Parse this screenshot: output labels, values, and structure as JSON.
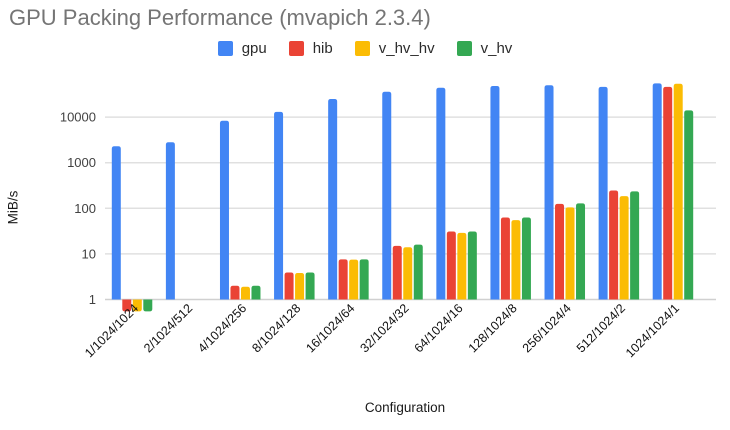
{
  "chart_data": {
    "type": "bar",
    "title": "GPU Packing Performance (mvapich 2.3.4)",
    "xlabel": "Configuration",
    "ylabel": "MiB/s",
    "yscale": "log",
    "yticks": [
      1,
      10,
      100,
      1000,
      10000
    ],
    "ylim": [
      0.5,
      65000
    ],
    "grid": true,
    "legend_position": "top-center",
    "categories": [
      "1/1024/1024",
      "2/1024/512",
      "4/1024/256",
      "8/1024/128",
      "16/1024/64",
      "32/1024/32",
      "64/1024/16",
      "128/1024/8",
      "256/1024/4",
      "512/1024/2",
      "1024/1024/1"
    ],
    "series": [
      {
        "name": "gpu",
        "color": "#4285F4",
        "values": [
          2300,
          2800,
          8300,
          13000,
          25000,
          36000,
          44000,
          48000,
          50000,
          46000,
          55000
        ]
      },
      {
        "name": "hib",
        "color": "#EA4335",
        "values": [
          0.55,
          null,
          2.0,
          3.9,
          7.6,
          15,
          31,
          63,
          125,
          245,
          46000
        ]
      },
      {
        "name": "v_hv_hv",
        "color": "#FBBC04",
        "values": [
          0.55,
          null,
          1.9,
          3.8,
          7.5,
          14,
          29,
          55,
          105,
          185,
          54000
        ]
      },
      {
        "name": "v_hv",
        "color": "#34A853",
        "values": [
          0.55,
          null,
          2.0,
          3.9,
          7.6,
          16,
          31,
          63,
          128,
          235,
          14000
        ]
      }
    ]
  },
  "colors": {
    "title_text": "#757575",
    "axis_tick_text": "#424242",
    "category_text": "#111111",
    "gridline": "#e0e0e0",
    "baseline": "#d0d0d0",
    "background": "#ffffff"
  }
}
